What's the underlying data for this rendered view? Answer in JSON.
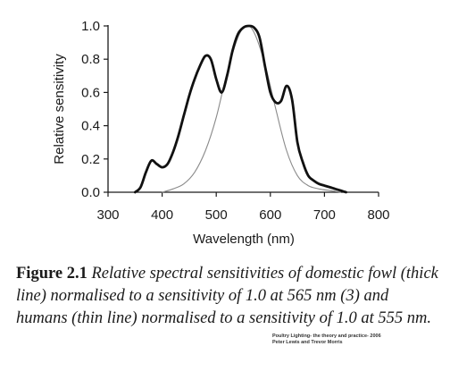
{
  "chart_data": {
    "type": "line",
    "title": "",
    "xlabel": "Wavelength (nm)",
    "ylabel": "Relative sensitivity",
    "xlim": [
      300,
      800
    ],
    "ylim": [
      0,
      1.0
    ],
    "xticks": [
      300,
      400,
      500,
      600,
      700,
      800
    ],
    "yticks": [
      "0.0",
      "0.2",
      "0.4",
      "0.6",
      "0.8",
      "1.0"
    ],
    "grid": false,
    "series": [
      {
        "line": "thick",
        "color": "#111111",
        "x": [
          350,
          360,
          370,
          380,
          390,
          400,
          410,
          420,
          430,
          440,
          450,
          460,
          470,
          480,
          490,
          500,
          510,
          520,
          530,
          540,
          550,
          560,
          570,
          580,
          590,
          600,
          610,
          620,
          630,
          640,
          650,
          660,
          670,
          680,
          690,
          700,
          710,
          720,
          730,
          740
        ],
        "y": [
          0.0,
          0.03,
          0.12,
          0.19,
          0.17,
          0.15,
          0.17,
          0.24,
          0.34,
          0.46,
          0.58,
          0.68,
          0.76,
          0.82,
          0.8,
          0.68,
          0.6,
          0.7,
          0.85,
          0.95,
          0.99,
          1.0,
          0.99,
          0.93,
          0.76,
          0.6,
          0.54,
          0.55,
          0.64,
          0.56,
          0.3,
          0.18,
          0.1,
          0.07,
          0.05,
          0.04,
          0.03,
          0.02,
          0.01,
          0.0
        ]
      },
      {
        "line": "thin",
        "color": "#8a8a8a",
        "x": [
          400,
          420,
          440,
          460,
          480,
          500,
          520,
          540,
          555,
          570,
          590,
          610,
          630,
          650,
          670,
          690,
          710,
          730
        ],
        "y": [
          0.0,
          0.02,
          0.05,
          0.12,
          0.25,
          0.45,
          0.72,
          0.93,
          1.0,
          0.96,
          0.77,
          0.5,
          0.25,
          0.1,
          0.04,
          0.02,
          0.01,
          0.0
        ]
      }
    ]
  },
  "caption": {
    "label": "Figure 2.1",
    "text": "Relative spectral sensitivities of domestic fowl (thick line) normalised to a sensitivity of 1.0 at 565 nm (3) and humans (thin line) normalised to a sensitivity of 1.0 at 555 nm."
  },
  "credit": {
    "line1": "Poultry Lighting- the theory and practice- 2006",
    "line2": "Peter Lewis and Trevor Morris"
  }
}
